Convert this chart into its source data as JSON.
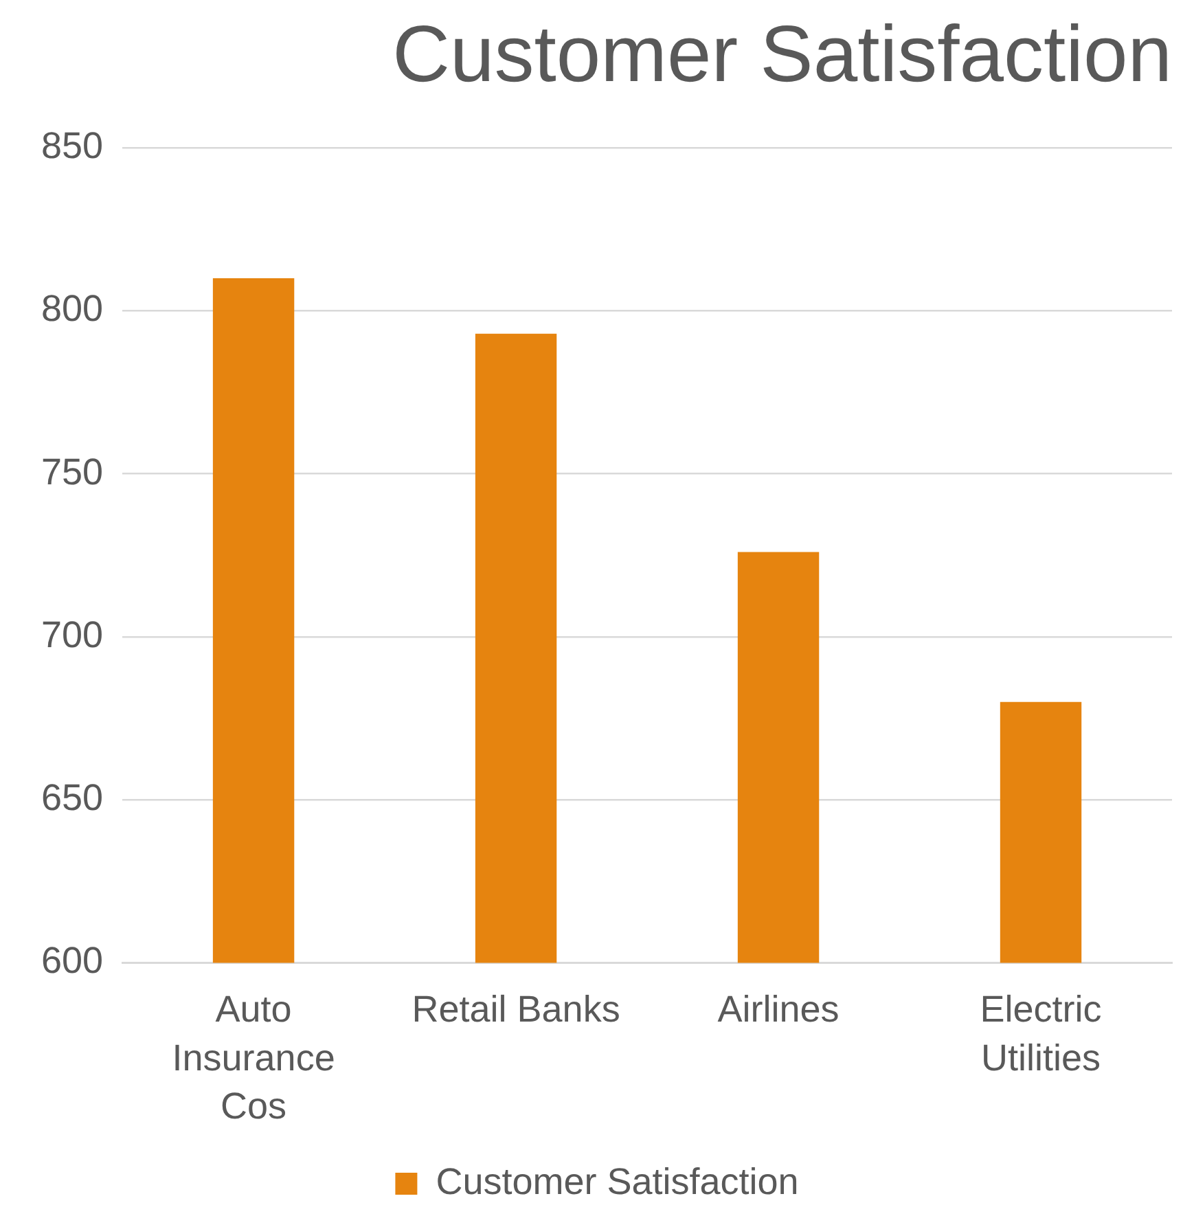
{
  "chart_data": {
    "type": "bar",
    "title": "Customer Satisfaction",
    "categories": [
      "Auto Insurance Cos",
      "Retail Banks",
      "Airlines",
      "Electric Utilities"
    ],
    "series": [
      {
        "name": "Customer Satisfaction",
        "color": "#e6840f",
        "values": [
          810,
          793,
          726,
          680
        ]
      }
    ],
    "ylim": [
      600,
      850
    ],
    "yticks": [
      600,
      650,
      700,
      750,
      800,
      850
    ],
    "grid": "y",
    "legend": "bottom"
  }
}
